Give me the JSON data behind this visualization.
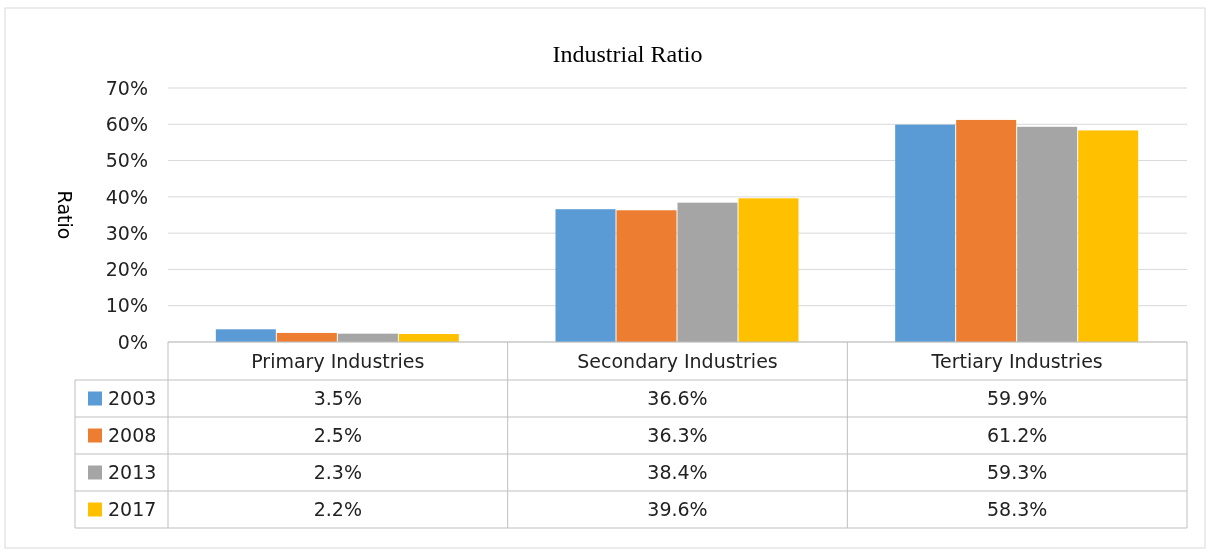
{
  "chart_data": {
    "type": "bar",
    "title": "Industrial  Ratio",
    "ylabel": "Ratio",
    "categories": [
      "Primary Industries",
      "Secondary Industries",
      "Tertiary Industries"
    ],
    "series": [
      {
        "name": "2003",
        "color": "#5b9bd5",
        "values": [
          3.5,
          36.6,
          59.9
        ],
        "value_labels": [
          "3.5%",
          "36.6%",
          "59.9%"
        ]
      },
      {
        "name": "2008",
        "color": "#ed7d31",
        "values": [
          2.5,
          36.3,
          61.2
        ],
        "value_labels": [
          "2.5%",
          "36.3%",
          "61.2%"
        ]
      },
      {
        "name": "2013",
        "color": "#a5a5a5",
        "values": [
          2.3,
          38.4,
          59.3
        ],
        "value_labels": [
          "2.3%",
          "38.4%",
          "59.3%"
        ]
      },
      {
        "name": "2017",
        "color": "#ffc000",
        "values": [
          2.2,
          39.6,
          58.3
        ],
        "value_labels": [
          "2.2%",
          "39.6%",
          "58.3%"
        ]
      }
    ],
    "ylim": [
      0,
      70
    ],
    "yticks": [
      {
        "value": 0,
        "label": "0%"
      },
      {
        "value": 10,
        "label": "10%"
      },
      {
        "value": 20,
        "label": "20%"
      },
      {
        "value": 30,
        "label": "30%"
      },
      {
        "value": 40,
        "label": "40%"
      },
      {
        "value": 50,
        "label": "50%"
      },
      {
        "value": 60,
        "label": "60%"
      },
      {
        "value": 70,
        "label": "70%"
      }
    ],
    "grid": "y",
    "legend": "bottom left"
  }
}
